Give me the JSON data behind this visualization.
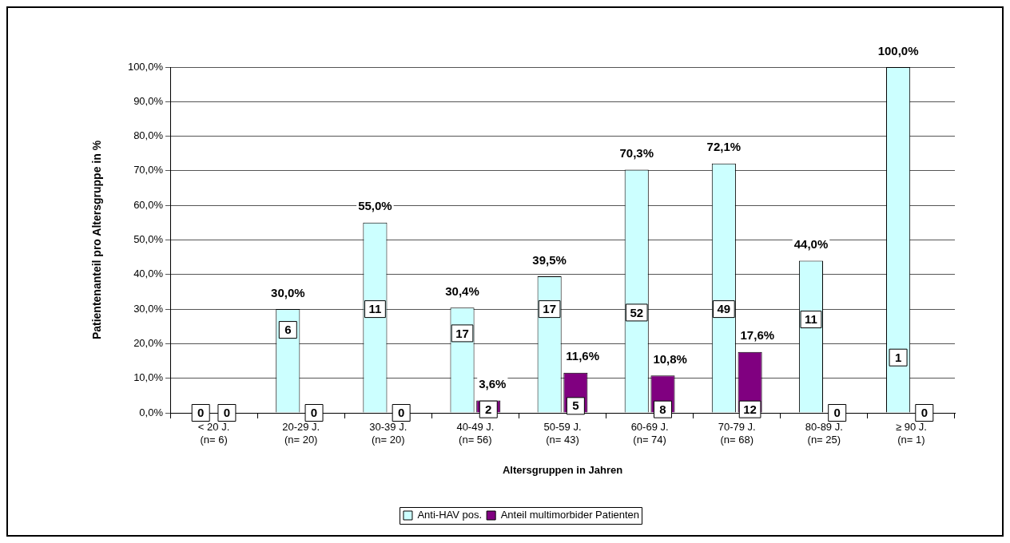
{
  "chart_data": {
    "type": "bar",
    "xlabel": "Altersgruppen in Jahren",
    "ylabel": "Patientenanteil pro Altersgruppe in %",
    "categories": [
      "< 20 J.\n(n= 6)",
      "20-29 J.\n(n= 20)",
      "30-39 J.\n(n= 20)",
      "40-49 J.\n(n= 56)",
      "50-59 J.\n(n= 43)",
      "60-69 J.\n(n= 74)",
      "70-79 J.\n(n= 68)",
      "80-89 J.\n(n= 25)",
      "≥ 90 J.\n(n= 1)"
    ],
    "series": [
      {
        "name": "Anti-HAV pos.",
        "color": "#ccffff",
        "values": [
          0,
          30.0,
          55.0,
          30.4,
          39.5,
          70.3,
          72.1,
          44.0,
          100.0
        ],
        "value_labels": [
          null,
          "30,0%",
          "55,0%",
          "30,4%",
          "39,5%",
          "70,3%",
          "72,1%",
          "44,0%",
          "100,0%"
        ]
      },
      {
        "name": "Anteil multimorbider Patienten",
        "color": "#800080",
        "values": [
          0,
          0,
          0,
          3.6,
          11.6,
          10.8,
          17.6,
          0,
          0
        ],
        "value_labels": [
          null,
          null,
          null,
          "3,6%",
          "11,6%",
          "10,8%",
          "17,6%",
          null,
          null
        ]
      }
    ],
    "ylim": [
      0,
      100
    ],
    "yticks": [
      {
        "value": 0,
        "label": "0,0%"
      },
      {
        "value": 10,
        "label": "10,0%"
      },
      {
        "value": 20,
        "label": "20,0%"
      },
      {
        "value": 30,
        "label": "30,0%"
      },
      {
        "value": 40,
        "label": "40,0%"
      },
      {
        "value": 50,
        "label": "50,0%"
      },
      {
        "value": 60,
        "label": "60,0%"
      },
      {
        "value": 70,
        "label": "70,0%"
      },
      {
        "value": 80,
        "label": "80,0%"
      },
      {
        "value": 90,
        "label": "90,0%"
      },
      {
        "value": 100,
        "label": "100,0%"
      }
    ],
    "grid": "y",
    "legend": "bottom",
    "annotations": [
      {
        "text": "0",
        "x": "< 20 J.\n(n= 6)",
        "y": 0
      },
      {
        "text": "0",
        "x": "< 20 J.\n(n= 6)",
        "y": 0
      },
      {
        "text": "6",
        "x": "20-29 J.\n(n= 20)",
        "y": 24
      },
      {
        "text": "0",
        "x": "20-29 J.\n(n= 20)",
        "y": 0
      },
      {
        "text": "11",
        "x": "30-39 J.\n(n= 20)",
        "y": 30
      },
      {
        "text": "0",
        "x": "30-39 J.\n(n= 20)",
        "y": 0
      },
      {
        "text": "17",
        "x": "40-49 J.\n(n= 56)",
        "y": 23
      },
      {
        "text": "2",
        "x": "40-49 J.\n(n= 56)",
        "y": 1
      },
      {
        "text": "17",
        "x": "50-59 J.\n(n= 43)",
        "y": 30
      },
      {
        "text": "5",
        "x": "50-59 J.\n(n= 43)",
        "y": 2
      },
      {
        "text": "52",
        "x": "60-69 J.\n(n= 74)",
        "y": 29
      },
      {
        "text": "8",
        "x": "60-69 J.\n(n= 74)",
        "y": 1
      },
      {
        "text": "49",
        "x": "70-79 J.\n(n= 68)",
        "y": 30
      },
      {
        "text": "12",
        "x": "70-79 J.\n(n= 68)",
        "y": 1
      },
      {
        "text": "11",
        "x": "80-89 J.\n(n= 25)",
        "y": 27
      },
      {
        "text": "0",
        "x": "80-89 J.\n(n= 25)",
        "y": 0
      },
      {
        "text": "1",
        "x": "≥ 90 J.\n(n= 1)",
        "y": 16
      },
      {
        "text": "0",
        "x": "≥ 90 J.\n(n= 1)",
        "y": 0
      }
    ]
  }
}
